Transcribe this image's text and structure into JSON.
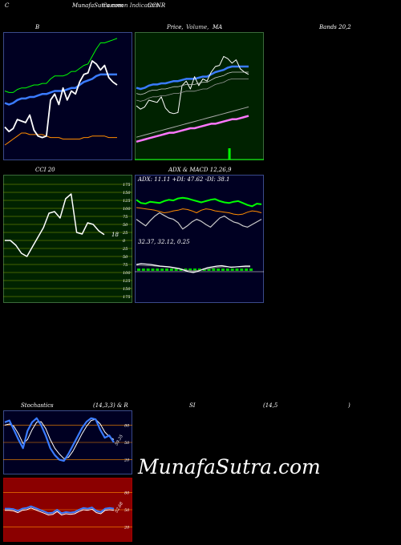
{
  "header": {
    "left": "C",
    "title": "MunafaSutra.com",
    "overlay": "Common Indicators",
    "symbol": "CCNR"
  },
  "labels": {
    "bollinger": "B",
    "price_title": "Price,",
    "price_title2": "Volume,",
    "price_title3": "MA",
    "bands": "Bands 20,2",
    "cci": "CCI 20",
    "adx_macd": "ADX  & MACD 12,26,9",
    "adx_values": "ADX: 11.11  +DI: 47.62  -DI: 38.1",
    "macd_values": "32.37,  32.12,  0.25",
    "cci_last": "18",
    "stoch_title": "Stochastics",
    "stoch_params": "(14,3,3) & R",
    "rsi_title": "SI",
    "rsi_params": "(14,5",
    "rsi_close": ")",
    "stoch_last": "59.35",
    "rsi_last": "52.68",
    "watermark": "MunafaSutra.com"
  },
  "colors": {
    "panel_navy": "#000022",
    "panel_green": "#002200",
    "panel_red": "#8b0000",
    "blue_line": "#3a7bff",
    "orange_line": "#ff8c00",
    "green_line": "#00ff00",
    "white_line": "#ffffff"
  },
  "chart_data": [
    {
      "type": "line",
      "name": "bollinger",
      "series": [
        {
          "values": [
            40,
            37,
            39,
            45,
            44,
            43,
            48,
            38,
            34,
            33,
            34,
            58,
            62,
            55,
            66,
            58,
            64,
            62,
            70,
            75,
            76,
            84,
            82,
            78,
            81,
            73,
            70,
            68
          ]
        },
        {
          "values": [
            56,
            55,
            56,
            58,
            59,
            59,
            60,
            60,
            61,
            62,
            62,
            63,
            64,
            64,
            64,
            65,
            66,
            66,
            68,
            70,
            71,
            72,
            74,
            75,
            75,
            75,
            75,
            75
          ]
        },
        {
          "values": [
            64,
            63,
            63,
            65,
            66,
            66,
            67,
            68,
            68,
            69,
            69,
            72,
            74,
            74,
            74,
            75,
            77,
            77,
            79,
            81,
            82,
            87,
            92,
            96,
            96,
            97,
            98,
            99
          ]
        },
        {
          "values": [
            28,
            30,
            32,
            34,
            36,
            36,
            35,
            35,
            35,
            35,
            34,
            33,
            33,
            33,
            32,
            32,
            32,
            32,
            32,
            33,
            33,
            34,
            34,
            34,
            34,
            33,
            33,
            33
          ]
        }
      ]
    },
    {
      "type": "line",
      "name": "price_ma",
      "series": [
        {
          "values": [
            40,
            37,
            39,
            45,
            44,
            43,
            48,
            38,
            34,
            33,
            34,
            58,
            62,
            55,
            66,
            58,
            64,
            62,
            70,
            75,
            76,
            84,
            82,
            78,
            81,
            73,
            70,
            68
          ]
        },
        {
          "values": [
            56,
            55,
            56,
            58,
            59,
            59,
            60,
            60,
            61,
            62,
            62,
            63,
            64,
            64,
            64,
            65,
            66,
            66,
            68,
            70,
            71,
            72,
            74,
            75,
            75,
            75,
            75,
            75
          ]
        },
        {
          "values": [
            12,
            13,
            14,
            15,
            16,
            17,
            18,
            19,
            20,
            21,
            22,
            23,
            24,
            25,
            26,
            27,
            28,
            29,
            30,
            31,
            32,
            33,
            34,
            35,
            36,
            37,
            38,
            39
          ]
        },
        {
          "values": [
            8,
            9,
            10,
            11,
            12,
            13,
            14,
            15,
            16,
            16,
            17,
            18,
            19,
            20,
            20,
            21,
            22,
            23,
            24,
            24,
            25,
            26,
            27,
            28,
            28,
            29,
            30,
            31
          ]
        }
      ],
      "volume_bar_index": 22,
      "volume_value": 100
    },
    {
      "type": "line",
      "name": "cci",
      "ylim": [
        -175,
        175
      ],
      "ticks": [
        175,
        150,
        125,
        100,
        75,
        50,
        25,
        0,
        -25,
        -50,
        -75,
        -100,
        -125,
        -150,
        -175
      ],
      "tick_labels": [
        "175",
        "150",
        "125",
        "100",
        "75",
        "50",
        "25",
        "0",
        "25",
        "50",
        "75",
        "100",
        "125",
        "150",
        "175"
      ],
      "values": [
        0,
        0,
        -15,
        -40,
        -50,
        -20,
        10,
        40,
        85,
        90,
        70,
        130,
        145,
        25,
        20,
        55,
        50,
        30,
        18
      ]
    },
    {
      "type": "line",
      "name": "adx_macd",
      "adx": {
        "plus_di": [
          60,
          55,
          54,
          57,
          56,
          55,
          58,
          60,
          59,
          62,
          63,
          62,
          60,
          58,
          56,
          58,
          60,
          61,
          58,
          56,
          55,
          57,
          58,
          55,
          52,
          50,
          54,
          53
        ],
        "minus_di": [
          48,
          47,
          46,
          45,
          44,
          42,
          40,
          41,
          43,
          44,
          46,
          45,
          43,
          40,
          44,
          46,
          45,
          43,
          42,
          41,
          40,
          38,
          37,
          38,
          41,
          43,
          42,
          40
        ],
        "adx": [
          30,
          25,
          20,
          28,
          35,
          40,
          36,
          32,
          30,
          25,
          15,
          20,
          26,
          30,
          27,
          22,
          18,
          25,
          32,
          35,
          30,
          26,
          24,
          20,
          18,
          22,
          26,
          30
        ]
      },
      "macd": {
        "macd": [
          3,
          3.2,
          3.1,
          3,
          2.8,
          2.6,
          2.5,
          2.4,
          2.2,
          2,
          1.6,
          1.2,
          1,
          1.3,
          1.8,
          2.2,
          2.4,
          2.6,
          2.7,
          2.5,
          2.3,
          2.4,
          2.5,
          2.6,
          2.6
        ],
        "signal": [
          2.8,
          2.8,
          2.7,
          2.7,
          2.6,
          2.5,
          2.4,
          2.3,
          2.1,
          1.9,
          1.7,
          1.5,
          1.4,
          1.5,
          1.7,
          1.9,
          2.1,
          2.3,
          2.4,
          2.4,
          2.4,
          2.4,
          2.4,
          2.4,
          2.4
        ]
      }
    },
    {
      "type": "line",
      "name": "stochastics",
      "ylim": [
        0,
        100
      ],
      "ticks": [
        80,
        50,
        20
      ],
      "tick_labels": [
        "80",
        "50",
        "20"
      ],
      "fast": [
        85,
        88,
        72,
        55,
        40,
        70,
        85,
        92,
        80,
        62,
        40,
        28,
        20,
        18,
        30,
        45,
        60,
        75,
        86,
        92,
        90,
        72,
        58,
        62,
        50
      ],
      "slow": [
        80,
        82,
        78,
        65,
        48,
        55,
        72,
        85,
        86,
        74,
        55,
        40,
        30,
        22,
        24,
        35,
        50,
        65,
        78,
        88,
        90,
        82,
        68,
        60,
        55
      ]
    },
    {
      "type": "line",
      "name": "rsi",
      "ylim": [
        0,
        100
      ],
      "ticks": [
        80,
        50,
        20
      ],
      "tick_labels": [
        "80",
        "50",
        "20"
      ],
      "values": [
        52,
        52,
        51,
        48,
        52,
        53,
        56,
        53,
        50,
        47,
        44,
        45,
        50,
        44,
        46,
        45,
        46,
        50,
        53,
        52,
        54,
        48,
        46,
        52,
        53,
        52
      ]
    }
  ]
}
